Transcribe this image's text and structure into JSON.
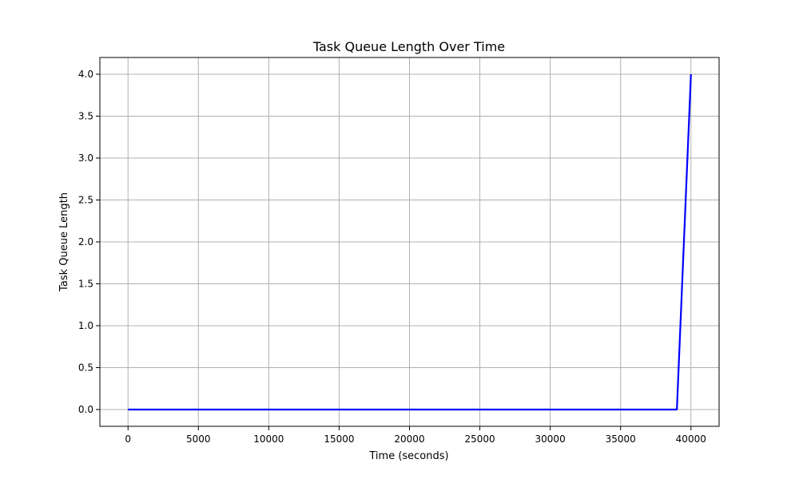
{
  "chart_data": {
    "type": "line",
    "title": "Task Queue Length Over Time",
    "xlabel": "Time (seconds)",
    "ylabel": "Task Queue Length",
    "xlim": [
      -2000,
      42000
    ],
    "ylim": [
      -0.2,
      4.2
    ],
    "x_ticks": [
      0,
      5000,
      10000,
      15000,
      20000,
      25000,
      30000,
      35000,
      40000
    ],
    "y_ticks": [
      0.0,
      0.5,
      1.0,
      1.5,
      2.0,
      2.5,
      3.0,
      3.5,
      4.0
    ],
    "y_tick_labels": [
      "0.0",
      "0.5",
      "1.0",
      "1.5",
      "2.0",
      "2.5",
      "3.0",
      "3.5",
      "4.0"
    ],
    "grid": true,
    "series": [
      {
        "color": "#0000ff",
        "x": [
          0,
          39000,
          40000
        ],
        "y": [
          0,
          0,
          4
        ]
      }
    ]
  }
}
